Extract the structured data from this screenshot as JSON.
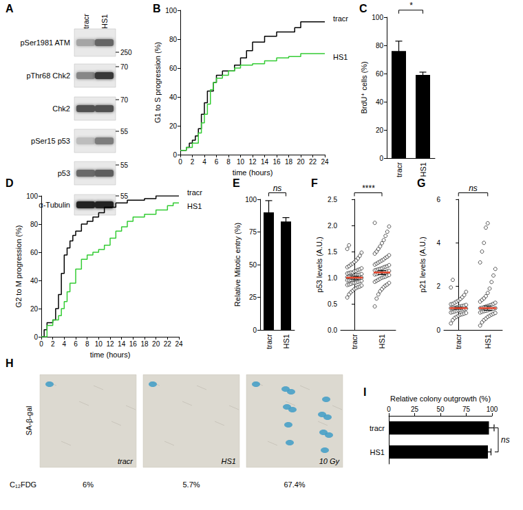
{
  "chart_data": [
    {
      "panel": "B",
      "type": "line",
      "line_style": "step",
      "xlabel": "time (hours)",
      "ylabel": "G1 to S progression (%)",
      "xlim": [
        0,
        24
      ],
      "xticks": [
        0,
        2,
        4,
        6,
        8,
        10,
        12,
        14,
        16,
        18,
        20,
        22,
        24
      ],
      "ylim": [
        0,
        100
      ],
      "yticks": [
        0,
        20,
        40,
        60,
        80,
        100
      ],
      "grid": false,
      "series": [
        {
          "name": "tracr",
          "color": "#000000",
          "x": [
            0,
            1,
            1.5,
            2,
            2.5,
            3,
            3.5,
            4,
            4.5,
            5.5,
            6,
            7,
            9,
            10,
            11,
            12,
            14,
            16,
            19,
            20,
            24
          ],
          "values": [
            3,
            5,
            8,
            10,
            13,
            18,
            28,
            36,
            44,
            50,
            55,
            58,
            62,
            67,
            72,
            78,
            82,
            85,
            88,
            92,
            92
          ]
        },
        {
          "name": "HS1",
          "color": "#33cc33",
          "x": [
            0,
            1,
            2,
            3,
            3.5,
            4,
            4.5,
            5,
            5.5,
            6,
            7,
            8,
            9,
            10,
            12,
            14,
            16,
            18,
            20,
            24
          ],
          "values": [
            3,
            5,
            8,
            15,
            22,
            28,
            35,
            45,
            50,
            53,
            55,
            58,
            60,
            62,
            63,
            65,
            67,
            68,
            70,
            70
          ]
        }
      ]
    },
    {
      "panel": "C",
      "type": "bar",
      "ylabel": "BrdU⁺ cells (%)",
      "categories": [
        "tracr",
        "HS1"
      ],
      "values": [
        76,
        59
      ],
      "errors": [
        7,
        2
      ],
      "color": "#000000",
      "ylim": [
        0,
        100
      ],
      "yticks": [
        0,
        20,
        40,
        60,
        80,
        100
      ],
      "grid": false,
      "annotation": "*"
    },
    {
      "panel": "D",
      "type": "line",
      "line_style": "step",
      "xlabel": "time (hours)",
      "ylabel": "G2 to M progression (%)",
      "xlim": [
        0,
        24
      ],
      "xticks": [
        0,
        2,
        4,
        6,
        8,
        10,
        12,
        14,
        16,
        18,
        20,
        22,
        24
      ],
      "ylim": [
        0,
        100
      ],
      "yticks": [
        0,
        20,
        40,
        60,
        80,
        100
      ],
      "grid": false,
      "series": [
        {
          "name": "tracr",
          "color": "#000000",
          "x": [
            0,
            0.5,
            1,
            2,
            2.5,
            3,
            3.5,
            4,
            4.5,
            5,
            5.5,
            6,
            7,
            8,
            9,
            10,
            11,
            13,
            15,
            18,
            20,
            24
          ],
          "values": [
            0,
            5,
            10,
            12,
            20,
            30,
            45,
            58,
            63,
            68,
            72,
            75,
            80,
            82,
            85,
            88,
            92,
            95,
            97,
            98,
            100,
            100
          ]
        },
        {
          "name": "HS1",
          "color": "#33cc33",
          "x": [
            0,
            1,
            2,
            3,
            3.5,
            4,
            4.5,
            5,
            6,
            7,
            8,
            9,
            10,
            11,
            12,
            13,
            14,
            15,
            16,
            18,
            20,
            22,
            23,
            24
          ],
          "values": [
            0,
            8,
            12,
            15,
            20,
            25,
            32,
            38,
            48,
            55,
            58,
            60,
            62,
            65,
            70,
            75,
            78,
            82,
            85,
            87,
            90,
            93,
            95,
            95
          ]
        }
      ]
    },
    {
      "panel": "E",
      "type": "bar",
      "ylabel": "Relative Mitotic entry (%)",
      "categories": [
        "tracr",
        "HS1"
      ],
      "values": [
        90,
        83
      ],
      "errors": [
        9,
        3
      ],
      "color": "#000000",
      "ylim": [
        0,
        100
      ],
      "yticks": [
        0,
        25,
        50,
        75,
        100
      ],
      "grid": false,
      "annotation": "ns"
    },
    {
      "panel": "F",
      "type": "scatter",
      "marker": "open circle",
      "color": "#000000",
      "ylabel": "p53 levels (A.U.)",
      "categories": [
        "tracr",
        "HS1"
      ],
      "points": [
        [
          0.62,
          0.68,
          0.72,
          0.75,
          0.78,
          0.8,
          0.82,
          0.83,
          0.85,
          0.86,
          0.87,
          0.88,
          0.9,
          0.9,
          0.91,
          0.92,
          0.93,
          0.94,
          0.95,
          0.95,
          0.96,
          0.97,
          0.98,
          0.98,
          0.99,
          1.0,
          1.0,
          1.01,
          1.02,
          1.02,
          1.03,
          1.04,
          1.05,
          1.05,
          1.06,
          1.07,
          1.08,
          1.09,
          1.1,
          1.1,
          1.12,
          1.13,
          1.15,
          1.16,
          1.18,
          1.2,
          1.22,
          1.25,
          1.27,
          1.3,
          1.33,
          1.37,
          1.42,
          1.48,
          1.55,
          1.62
        ],
        [
          0.45,
          0.6,
          0.68,
          0.74,
          0.78,
          0.82,
          0.85,
          0.87,
          0.9,
          0.92,
          0.94,
          0.96,
          0.98,
          1.0,
          1.01,
          1.02,
          1.04,
          1.05,
          1.06,
          1.07,
          1.08,
          1.09,
          1.1,
          1.1,
          1.11,
          1.12,
          1.13,
          1.14,
          1.15,
          1.16,
          1.17,
          1.18,
          1.2,
          1.21,
          1.22,
          1.24,
          1.25,
          1.27,
          1.29,
          1.31,
          1.33,
          1.35,
          1.38,
          1.4,
          1.43,
          1.46,
          1.5,
          1.55,
          1.6,
          1.66,
          1.72,
          1.8,
          1.88,
          1.98,
          2.05
        ]
      ],
      "means": [
        1.0,
        1.1
      ],
      "mean_errors": [
        0.03,
        0.04
      ],
      "mean_color": "#e8442a",
      "ylim": [
        0,
        2.5
      ],
      "yticks": [
        {
          "value": 0,
          "label": "0.0"
        },
        0.5,
        {
          "value": 1,
          "label": "1.0"
        },
        1.5,
        {
          "value": 2,
          "label": "2.0"
        },
        2.5
      ],
      "grid": false,
      "annotation": "****"
    },
    {
      "panel": "G",
      "type": "scatter",
      "marker": "open circle",
      "color": "#000000",
      "ylabel": "p21 levels (A.U.)",
      "categories": [
        "tracr",
        "HS1"
      ],
      "points": [
        [
          0.3,
          0.45,
          0.55,
          0.6,
          0.65,
          0.7,
          0.72,
          0.75,
          0.78,
          0.8,
          0.82,
          0.85,
          0.87,
          0.9,
          0.92,
          0.94,
          0.96,
          0.98,
          1.0,
          1.0,
          1.02,
          1.04,
          1.06,
          1.08,
          1.1,
          1.12,
          1.15,
          1.18,
          1.2,
          1.25,
          1.3,
          1.35,
          1.42,
          1.5,
          1.6,
          1.75,
          1.95,
          2.3
        ],
        [
          0.2,
          0.35,
          0.45,
          0.52,
          0.6,
          0.65,
          0.7,
          0.74,
          0.78,
          0.8,
          0.83,
          0.86,
          0.88,
          0.9,
          0.93,
          0.95,
          0.97,
          1.0,
          1.0,
          1.02,
          1.04,
          1.07,
          1.1,
          1.13,
          1.16,
          1.2,
          1.25,
          1.3,
          1.38,
          1.45,
          1.55,
          1.7,
          1.9,
          2.2,
          2.5,
          2.8,
          3.1,
          3.6,
          4.0,
          4.7,
          4.9
        ]
      ],
      "means": [
        1.0,
        1.0
      ],
      "mean_errors": [
        0.05,
        0.1
      ],
      "mean_color": "#e8442a",
      "ylim": [
        0,
        6
      ],
      "yticks": [
        0,
        2,
        4,
        6
      ],
      "grid": false,
      "annotation": "ns"
    },
    {
      "panel": "I",
      "type": "bar",
      "orientation": "horizontal",
      "title": "Relative colony outgrowth (%)",
      "categories": [
        "tracr",
        "HS1"
      ],
      "values": [
        97,
        96
      ],
      "errors": [
        5,
        3
      ],
      "color": "#000000",
      "xlim": [
        0,
        100
      ],
      "xticks": [
        0,
        25,
        50,
        75,
        100
      ],
      "grid": false,
      "annotation": "ns"
    }
  ],
  "blot": {
    "panel": "A",
    "lanes": [
      "tracr",
      "HS1"
    ],
    "rows": [
      {
        "label": "pSer1981 ATM",
        "marker": 250
      },
      {
        "label": "pThr68 Chk2",
        "marker": 70
      },
      {
        "label": "Chk2",
        "marker": 70
      },
      {
        "label": "pSer15 p53",
        "marker": 55
      },
      {
        "label": "p53",
        "marker": 55
      },
      {
        "label": "α-Tubulin",
        "marker": 55
      }
    ]
  },
  "images": {
    "panel": "H",
    "label": "SA-β-gal",
    "conditions": [
      "tracr",
      "HS1",
      "10 Gy"
    ],
    "assay": "C₁₂FDG",
    "values": [
      6,
      5.7,
      67.4
    ],
    "value_labels": [
      "6%",
      "5.7%",
      "67.4%"
    ]
  }
}
